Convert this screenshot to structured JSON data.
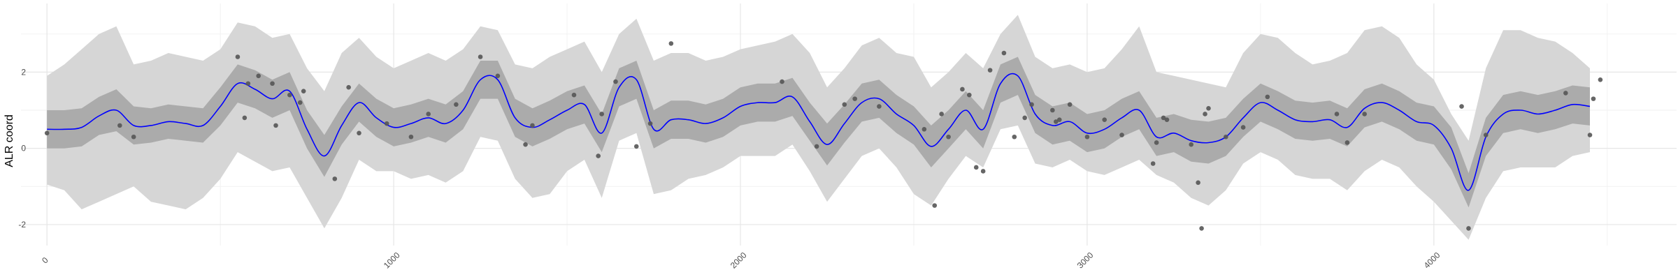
{
  "chart_data": {
    "type": "line",
    "title": "",
    "xlabel": "",
    "ylabel": "ALR coord",
    "xlim": [
      -75,
      4700
    ],
    "ylim": [
      -2.55,
      3.8
    ],
    "xticks": [
      0,
      1000,
      2000,
      3000,
      4000
    ],
    "yticks": [
      -2,
      0,
      2
    ],
    "grid": true,
    "legend": "none",
    "colors": {
      "mean_line": "#0000ff",
      "inner_band": "#ababab",
      "outer_band": "#d6d6d6",
      "points": "#555555",
      "grid_major": "#e6e6e6",
      "grid_minor": "#f2f2f2"
    },
    "series": [
      {
        "kind": "line",
        "x": [
          0,
          50,
          100,
          150,
          200,
          250,
          300,
          350,
          400,
          450,
          500,
          550,
          600,
          650,
          700,
          750,
          800,
          850,
          900,
          950,
          1000,
          1050,
          1100,
          1150,
          1200,
          1250,
          1300,
          1350,
          1400,
          1450,
          1500,
          1550,
          1600,
          1650,
          1700,
          1750,
          1800,
          1850,
          1900,
          1950,
          2000,
          2050,
          2100,
          2150,
          2200,
          2250,
          2300,
          2350,
          2400,
          2450,
          2500,
          2550,
          2600,
          2650,
          2700,
          2750,
          2800,
          2850,
          2900,
          2950,
          3000,
          3050,
          3100,
          3150,
          3200,
          3250,
          3300,
          3350,
          3400,
          3450,
          3500,
          3550,
          3600,
          3650,
          3700,
          3750,
          3800,
          3850,
          3900,
          3950,
          4000,
          4050,
          4100,
          4150,
          4200,
          4250,
          4300,
          4350,
          4400,
          4450
        ],
        "y": [
          0.5,
          0.5,
          0.55,
          0.85,
          1.0,
          0.6,
          0.6,
          0.7,
          0.65,
          0.6,
          1.1,
          1.7,
          1.55,
          1.3,
          1.5,
          0.5,
          -0.2,
          0.6,
          1.2,
          0.8,
          0.55,
          0.65,
          0.8,
          0.65,
          1.0,
          1.8,
          1.8,
          0.8,
          0.55,
          0.75,
          1.0,
          1.15,
          0.4,
          1.6,
          1.8,
          0.5,
          0.75,
          0.75,
          0.65,
          0.8,
          1.1,
          1.2,
          1.2,
          1.35,
          0.7,
          0.1,
          0.65,
          1.2,
          1.3,
          0.9,
          0.6,
          0.05,
          0.5,
          1.0,
          0.5,
          1.7,
          1.9,
          0.9,
          0.6,
          0.7,
          0.4,
          0.5,
          0.8,
          1.0,
          0.3,
          0.4,
          0.2,
          0.15,
          0.3,
          0.8,
          1.2,
          1.0,
          0.75,
          0.7,
          0.75,
          0.55,
          1.05,
          1.2,
          1.0,
          0.7,
          0.6,
          0.0,
          -1.1,
          0.3,
          0.9,
          1.0,
          0.9,
          1.0,
          1.15,
          1.1
        ]
      },
      {
        "kind": "inner_band",
        "x": [
          0,
          50,
          100,
          150,
          200,
          250,
          300,
          350,
          400,
          450,
          500,
          550,
          600,
          650,
          700,
          750,
          800,
          850,
          900,
          950,
          1000,
          1050,
          1100,
          1150,
          1200,
          1250,
          1300,
          1350,
          1400,
          1450,
          1500,
          1550,
          1600,
          1650,
          1700,
          1750,
          1800,
          1850,
          1900,
          1950,
          2000,
          2050,
          2100,
          2150,
          2200,
          2250,
          2300,
          2350,
          2400,
          2450,
          2500,
          2550,
          2600,
          2650,
          2700,
          2750,
          2800,
          2850,
          2900,
          2950,
          3000,
          3050,
          3100,
          3150,
          3200,
          3250,
          3300,
          3350,
          3400,
          3450,
          3500,
          3550,
          3600,
          3650,
          3700,
          3750,
          3800,
          3850,
          3900,
          3950,
          4000,
          4050,
          4100,
          4150,
          4200,
          4250,
          4300,
          4350,
          4400,
          4450
        ],
        "ylow": [
          0.0,
          0.0,
          0.05,
          0.35,
          0.45,
          0.1,
          0.15,
          0.25,
          0.2,
          0.15,
          0.6,
          1.2,
          1.05,
          0.8,
          1.0,
          0.0,
          -0.75,
          0.1,
          0.7,
          0.3,
          0.05,
          0.15,
          0.3,
          0.15,
          0.5,
          1.3,
          1.3,
          0.3,
          0.05,
          0.25,
          0.5,
          0.65,
          -0.1,
          1.1,
          1.3,
          0.0,
          0.25,
          0.25,
          0.15,
          0.3,
          0.6,
          0.7,
          0.7,
          0.85,
          0.2,
          -0.45,
          0.15,
          0.7,
          0.8,
          0.4,
          0.1,
          -0.5,
          0.0,
          0.5,
          0.0,
          1.2,
          1.4,
          0.4,
          0.1,
          0.2,
          -0.1,
          0.0,
          0.3,
          0.5,
          -0.2,
          -0.1,
          -0.35,
          -0.4,
          -0.2,
          0.3,
          0.7,
          0.5,
          0.25,
          0.2,
          0.25,
          0.05,
          0.55,
          0.7,
          0.5,
          0.2,
          0.1,
          -0.55,
          -1.55,
          -0.2,
          0.4,
          0.5,
          0.4,
          0.5,
          0.65,
          0.6
        ],
        "yhigh": [
          1.0,
          1.0,
          1.05,
          1.35,
          1.55,
          1.1,
          1.05,
          1.15,
          1.1,
          1.05,
          1.6,
          2.2,
          2.05,
          1.8,
          2.0,
          1.0,
          0.35,
          1.1,
          1.7,
          1.3,
          1.05,
          1.15,
          1.3,
          1.15,
          1.5,
          2.3,
          2.3,
          1.3,
          1.05,
          1.25,
          1.5,
          1.65,
          0.9,
          2.1,
          2.3,
          1.0,
          1.25,
          1.25,
          1.15,
          1.3,
          1.6,
          1.7,
          1.7,
          1.85,
          1.2,
          0.65,
          1.15,
          1.7,
          1.8,
          1.4,
          1.1,
          0.6,
          1.0,
          1.5,
          1.0,
          2.2,
          2.4,
          1.4,
          1.1,
          1.2,
          0.9,
          1.0,
          1.3,
          1.5,
          0.8,
          0.9,
          0.75,
          0.7,
          0.8,
          1.3,
          1.7,
          1.5,
          1.25,
          1.2,
          1.25,
          1.05,
          1.55,
          1.7,
          1.5,
          1.2,
          1.1,
          0.55,
          -0.65,
          0.8,
          1.4,
          1.5,
          1.4,
          1.5,
          1.65,
          1.6
        ]
      },
      {
        "kind": "outer_band",
        "x": [
          0,
          50,
          100,
          150,
          200,
          250,
          300,
          350,
          400,
          450,
          500,
          550,
          600,
          650,
          700,
          750,
          800,
          850,
          900,
          950,
          1000,
          1050,
          1100,
          1150,
          1200,
          1250,
          1300,
          1350,
          1400,
          1450,
          1500,
          1550,
          1600,
          1650,
          1700,
          1750,
          1800,
          1850,
          1900,
          1950,
          2000,
          2050,
          2100,
          2150,
          2200,
          2250,
          2300,
          2350,
          2400,
          2450,
          2500,
          2550,
          2600,
          2650,
          2700,
          2750,
          2800,
          2850,
          2900,
          2950,
          3000,
          3050,
          3100,
          3150,
          3200,
          3250,
          3300,
          3350,
          3400,
          3450,
          3500,
          3550,
          3600,
          3650,
          3700,
          3750,
          3800,
          3850,
          3900,
          3950,
          4000,
          4050,
          4100,
          4150,
          4200,
          4250,
          4300,
          4350,
          4400,
          4450
        ],
        "ylow": [
          -0.95,
          -1.1,
          -1.6,
          -1.4,
          -1.2,
          -1.0,
          -1.4,
          -1.5,
          -1.6,
          -1.3,
          -0.8,
          -0.1,
          -0.35,
          -0.6,
          -0.5,
          -1.3,
          -2.1,
          -1.3,
          -0.3,
          -0.6,
          -0.6,
          -0.8,
          -0.7,
          -0.9,
          -0.6,
          0.3,
          0.2,
          -0.8,
          -1.3,
          -1.2,
          -0.6,
          -0.3,
          -1.3,
          0.2,
          0.4,
          -1.2,
          -1.1,
          -0.8,
          -0.7,
          -0.5,
          -0.2,
          -0.2,
          -0.2,
          0.1,
          -0.6,
          -1.4,
          -0.8,
          -0.2,
          0.0,
          -0.5,
          -1.2,
          -1.5,
          -0.8,
          -0.2,
          -0.5,
          0.5,
          0.6,
          -0.4,
          -0.5,
          -0.3,
          -0.6,
          -0.7,
          -0.5,
          -0.3,
          -0.7,
          -0.9,
          -1.3,
          -1.5,
          -1.1,
          -0.4,
          -0.1,
          -0.3,
          -0.7,
          -0.8,
          -0.8,
          -1.1,
          -0.6,
          -0.3,
          -0.5,
          -1.0,
          -1.4,
          -1.9,
          -2.4,
          -1.3,
          -0.6,
          -0.5,
          -0.5,
          -0.5,
          -0.2,
          -0.1
        ],
        "yhigh": [
          1.9,
          2.2,
          2.6,
          3.0,
          3.2,
          2.2,
          2.3,
          2.5,
          2.4,
          2.3,
          2.6,
          3.3,
          3.2,
          2.9,
          3.0,
          2.1,
          1.5,
          2.5,
          2.9,
          2.4,
          2.1,
          2.3,
          2.5,
          2.3,
          2.6,
          3.2,
          3.1,
          2.2,
          2.1,
          2.4,
          2.6,
          2.8,
          2.0,
          3.0,
          3.4,
          2.3,
          2.5,
          2.5,
          2.3,
          2.4,
          2.6,
          2.7,
          2.8,
          3.0,
          2.5,
          1.6,
          2.1,
          2.7,
          2.9,
          2.5,
          2.4,
          1.6,
          2.0,
          2.5,
          2.1,
          3.0,
          3.5,
          2.4,
          2.1,
          2.2,
          2.0,
          2.1,
          2.6,
          3.2,
          2.0,
          1.9,
          1.8,
          1.7,
          1.6,
          2.5,
          3.0,
          2.9,
          2.5,
          2.2,
          2.3,
          2.5,
          3.1,
          3.2,
          2.9,
          2.2,
          1.8,
          0.9,
          0.2,
          2.1,
          3.1,
          3.1,
          2.9,
          2.8,
          2.5,
          2.1
        ]
      },
      {
        "kind": "points",
        "x": [
          0,
          210,
          250,
          550,
          570,
          580,
          610,
          650,
          660,
          700,
          730,
          740,
          830,
          870,
          900,
          980,
          1050,
          1100,
          1180,
          1250,
          1300,
          1380,
          1400,
          1520,
          1590,
          1600,
          1640,
          1700,
          1740,
          1800,
          2120,
          2220,
          2300,
          2330,
          2400,
          2530,
          2560,
          2580,
          2600,
          2640,
          2660,
          2680,
          2700,
          2720,
          2760,
          2790,
          2820,
          2840,
          2900,
          2910,
          2920,
          2950,
          3000,
          3050,
          3100,
          3190,
          3200,
          3220,
          3230,
          3300,
          3320,
          3330,
          3340,
          3350,
          3400,
          3450,
          3520,
          3720,
          3750,
          3800,
          4080,
          4100,
          4150,
          4380,
          4450,
          4460,
          4480
        ],
        "y": [
          0.4,
          0.6,
          0.3,
          2.4,
          0.8,
          1.7,
          1.9,
          1.7,
          0.6,
          1.4,
          1.2,
          1.5,
          -0.8,
          1.6,
          0.4,
          0.65,
          0.3,
          0.9,
          1.15,
          2.4,
          1.9,
          0.1,
          0.6,
          1.4,
          -0.2,
          0.9,
          1.75,
          0.05,
          0.65,
          2.75,
          1.75,
          0.05,
          1.15,
          1.3,
          1.1,
          0.5,
          -1.5,
          0.9,
          0.3,
          1.55,
          1.4,
          -0.5,
          -0.6,
          2.05,
          2.5,
          0.3,
          0.8,
          1.15,
          1.0,
          0.7,
          0.75,
          1.15,
          0.3,
          0.75,
          0.35,
          -0.4,
          0.15,
          0.8,
          0.75,
          0.1,
          -0.9,
          -2.1,
          0.9,
          1.05,
          0.3,
          0.55,
          1.35,
          0.9,
          0.15,
          0.9,
          1.1,
          -2.1,
          0.35,
          1.45,
          0.35,
          1.3,
          1.8
        ]
      }
    ]
  }
}
